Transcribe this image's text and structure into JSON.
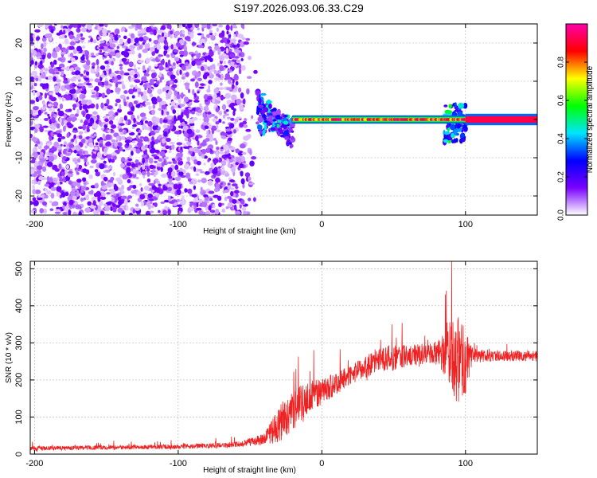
{
  "title": "S197.2026.093.06.33.C29",
  "chart_data": [
    {
      "type": "heatmap",
      "xlabel": "Height of straight line (km)",
      "ylabel": "Frequency (Hz)",
      "xlim": [
        -203,
        150
      ],
      "ylim": [
        -25,
        25
      ],
      "xticks": [
        -200,
        -100,
        0,
        100
      ],
      "yticks": [
        -20,
        -10,
        0,
        10,
        20
      ],
      "xtick_labels": [
        "-200",
        "-100",
        "0",
        "100"
      ],
      "ytick_labels": [
        "-20",
        "-10",
        "0",
        "10",
        "20"
      ],
      "colorbar": {
        "label": "Normalized spectral amplitude",
        "range": [
          0.0,
          1.0
        ],
        "ticks": [
          0.0,
          0.2,
          0.4,
          0.6,
          0.8
        ],
        "tick_labels": [
          "0.0",
          "0.2",
          "0.4",
          "0.6",
          "0.8"
        ],
        "colormap": "rainbow",
        "colors": [
          "#ffffff",
          "#7a00ff",
          "#0000ff",
          "#00e5ff",
          "#00ff00",
          "#ffff00",
          "#ff0000",
          "#ff00aa"
        ]
      },
      "regions": [
        {
          "x_range": [
            -203,
            -45
          ],
          "y_range": [
            -25,
            25
          ],
          "amplitude_range": [
            0.0,
            0.2
          ],
          "pattern": "scattered noise"
        },
        {
          "x_range": [
            -45,
            -20
          ],
          "y_range": [
            -12,
            8
          ],
          "amplitude_range": [
            0.1,
            0.5
          ],
          "pattern": "converging band"
        },
        {
          "x_range": [
            -20,
            150
          ],
          "y_range": [
            -1,
            1
          ],
          "amplitude_range": [
            0.3,
            1.0
          ],
          "pattern": "narrow band at 0 Hz"
        },
        {
          "x_range": [
            85,
            100
          ],
          "y_range": [
            -6,
            4
          ],
          "amplitude_range": [
            0.2,
            0.6
          ],
          "pattern": "disturbance"
        }
      ],
      "grid": true,
      "color": "#8800ff"
    },
    {
      "type": "line",
      "xlabel": "Height of straight line (km)",
      "ylabel": "SNR (10 * v/v)",
      "xlim": [
        -203,
        150
      ],
      "ylim": [
        0,
        520
      ],
      "xticks": [
        -200,
        -100,
        0,
        100
      ],
      "yticks": [
        0,
        100,
        200,
        300,
        400,
        500
      ],
      "xtick_labels": [
        "-200",
        "-100",
        "0",
        "100"
      ],
      "ytick_labels": [
        "0",
        "100",
        "200",
        "300",
        "400",
        "500"
      ],
      "grid": true,
      "color": "#ee2222",
      "profile": {
        "x": [
          -203,
          -150,
          -100,
          -60,
          -40,
          -30,
          -20,
          -10,
          0,
          10,
          20,
          30,
          40,
          50,
          60,
          70,
          80,
          90,
          95,
          100,
          105,
          120,
          150
        ],
        "y_mean": [
          15,
          18,
          20,
          25,
          40,
          80,
          120,
          150,
          170,
          190,
          215,
          235,
          255,
          260,
          265,
          270,
          275,
          280,
          250,
          250,
          265,
          265,
          265
        ],
        "y_spread": [
          12,
          12,
          12,
          15,
          30,
          100,
          110,
          90,
          70,
          60,
          55,
          60,
          70,
          70,
          60,
          55,
          60,
          200,
          260,
          180,
          40,
          30,
          30
        ]
      }
    }
  ]
}
